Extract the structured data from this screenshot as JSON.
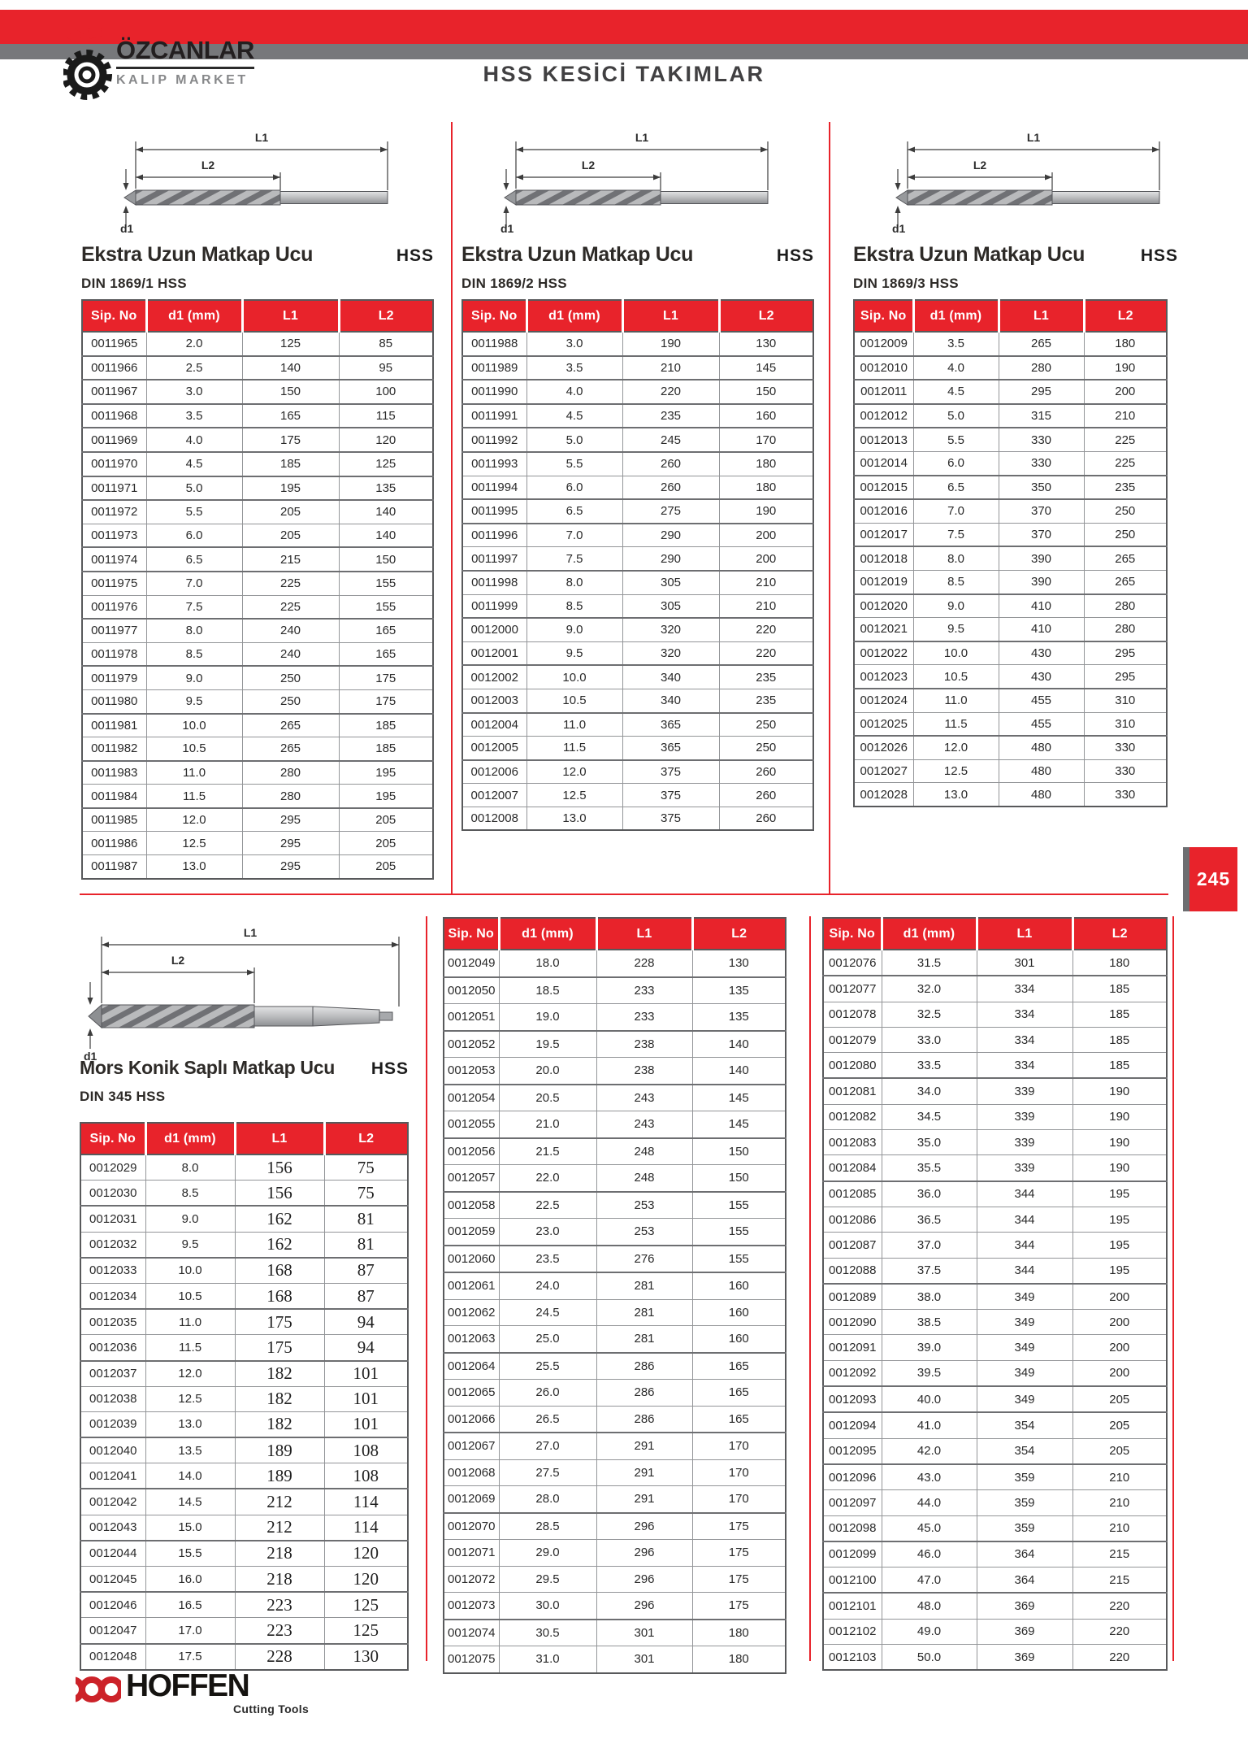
{
  "page": {
    "number": "245",
    "header_title": "HSS KESİCİ TAKIMLAR"
  },
  "brand": {
    "name": "ÖZCANLAR",
    "subtitle": "KALIP MARKET"
  },
  "footer": {
    "brand": "HOFFEN",
    "tagline": "Cutting Tools"
  },
  "colors": {
    "red": "#e8232b",
    "band_gray": "#77787b",
    "rule_gray": "#6d6e71"
  },
  "columns": [
    "Sip. No",
    "d1 (mm)",
    "L1",
    "L2"
  ],
  "diagram_labels": {
    "l1": "L1",
    "l2": "L2",
    "d1": "d1"
  },
  "sections": [
    {
      "title": "Ekstra Uzun Matkap Ucu",
      "badge": "HSS",
      "din": "DIN 1869/1 HSS",
      "rows": [
        [
          "0011965",
          "2.0",
          "125",
          "85"
        ],
        [
          "0011966",
          "2.5",
          "140",
          "95"
        ],
        [
          "0011967",
          "3.0",
          "150",
          "100"
        ],
        [
          "0011968",
          "3.5",
          "165",
          "115"
        ],
        [
          "0011969",
          "4.0",
          "175",
          "120"
        ],
        [
          "0011970",
          "4.5",
          "185",
          "125"
        ],
        [
          "0011971",
          "5.0",
          "195",
          "135"
        ],
        [
          "0011972",
          "5.5",
          "205",
          "140"
        ],
        [
          "0011973",
          "6.0",
          "205",
          "140"
        ],
        [
          "0011974",
          "6.5",
          "215",
          "150"
        ],
        [
          "0011975",
          "7.0",
          "225",
          "155"
        ],
        [
          "0011976",
          "7.5",
          "225",
          "155"
        ],
        [
          "0011977",
          "8.0",
          "240",
          "165"
        ],
        [
          "0011978",
          "8.5",
          "240",
          "165"
        ],
        [
          "0011979",
          "9.0",
          "250",
          "175"
        ],
        [
          "0011980",
          "9.5",
          "250",
          "175"
        ],
        [
          "0011981",
          "10.0",
          "265",
          "185"
        ],
        [
          "0011982",
          "10.5",
          "265",
          "185"
        ],
        [
          "0011983",
          "11.0",
          "280",
          "195"
        ],
        [
          "0011984",
          "11.5",
          "280",
          "195"
        ],
        [
          "0011985",
          "12.0",
          "295",
          "205"
        ],
        [
          "0011986",
          "12.5",
          "295",
          "205"
        ],
        [
          "0011987",
          "13.0",
          "295",
          "205"
        ]
      ]
    },
    {
      "title": "Ekstra Uzun Matkap Ucu",
      "badge": "HSS",
      "din": "DIN 1869/2 HSS",
      "rows": [
        [
          "0011988",
          "3.0",
          "190",
          "130"
        ],
        [
          "0011989",
          "3.5",
          "210",
          "145"
        ],
        [
          "0011990",
          "4.0",
          "220",
          "150"
        ],
        [
          "0011991",
          "4.5",
          "235",
          "160"
        ],
        [
          "0011992",
          "5.0",
          "245",
          "170"
        ],
        [
          "0011993",
          "5.5",
          "260",
          "180"
        ],
        [
          "0011994",
          "6.0",
          "260",
          "180"
        ],
        [
          "0011995",
          "6.5",
          "275",
          "190"
        ],
        [
          "0011996",
          "7.0",
          "290",
          "200"
        ],
        [
          "0011997",
          "7.5",
          "290",
          "200"
        ],
        [
          "0011998",
          "8.0",
          "305",
          "210"
        ],
        [
          "0011999",
          "8.5",
          "305",
          "210"
        ],
        [
          "0012000",
          "9.0",
          "320",
          "220"
        ],
        [
          "0012001",
          "9.5",
          "320",
          "220"
        ],
        [
          "0012002",
          "10.0",
          "340",
          "235"
        ],
        [
          "0012003",
          "10.5",
          "340",
          "235"
        ],
        [
          "0012004",
          "11.0",
          "365",
          "250"
        ],
        [
          "0012005",
          "11.5",
          "365",
          "250"
        ],
        [
          "0012006",
          "12.0",
          "375",
          "260"
        ],
        [
          "0012007",
          "12.5",
          "375",
          "260"
        ],
        [
          "0012008",
          "13.0",
          "375",
          "260"
        ]
      ]
    },
    {
      "title": "Ekstra Uzun Matkap Ucu",
      "badge": "HSS",
      "din": "DIN 1869/3 HSS",
      "rows": [
        [
          "0012009",
          "3.5",
          "265",
          "180"
        ],
        [
          "0012010",
          "4.0",
          "280",
          "190"
        ],
        [
          "0012011",
          "4.5",
          "295",
          "200"
        ],
        [
          "0012012",
          "5.0",
          "315",
          "210"
        ],
        [
          "0012013",
          "5.5",
          "330",
          "225"
        ],
        [
          "0012014",
          "6.0",
          "330",
          "225"
        ],
        [
          "0012015",
          "6.5",
          "350",
          "235"
        ],
        [
          "0012016",
          "7.0",
          "370",
          "250"
        ],
        [
          "0012017",
          "7.5",
          "370",
          "250"
        ],
        [
          "0012018",
          "8.0",
          "390",
          "265"
        ],
        [
          "0012019",
          "8.5",
          "390",
          "265"
        ],
        [
          "0012020",
          "9.0",
          "410",
          "280"
        ],
        [
          "0012021",
          "9.5",
          "410",
          "280"
        ],
        [
          "0012022",
          "10.0",
          "430",
          "295"
        ],
        [
          "0012023",
          "10.5",
          "430",
          "295"
        ],
        [
          "0012024",
          "11.0",
          "455",
          "310"
        ],
        [
          "0012025",
          "11.5",
          "455",
          "310"
        ],
        [
          "0012026",
          "12.0",
          "480",
          "330"
        ],
        [
          "0012027",
          "12.5",
          "480",
          "330"
        ],
        [
          "0012028",
          "13.0",
          "480",
          "330"
        ]
      ]
    },
    {
      "title": "Mors Konik Saplı Matkap Ucu",
      "badge": "HSS",
      "din": "DIN 345 HSS",
      "rows": [
        [
          "0012029",
          "8.0",
          "156",
          "75"
        ],
        [
          "0012030",
          "8.5",
          "156",
          "75"
        ],
        [
          "0012031",
          "9.0",
          "162",
          "81"
        ],
        [
          "0012032",
          "9.5",
          "162",
          "81"
        ],
        [
          "0012033",
          "10.0",
          "168",
          "87"
        ],
        [
          "0012034",
          "10.5",
          "168",
          "87"
        ],
        [
          "0012035",
          "11.0",
          "175",
          "94"
        ],
        [
          "0012036",
          "11.5",
          "175",
          "94"
        ],
        [
          "0012037",
          "12.0",
          "182",
          "101"
        ],
        [
          "0012038",
          "12.5",
          "182",
          "101"
        ],
        [
          "0012039",
          "13.0",
          "182",
          "101"
        ],
        [
          "0012040",
          "13.5",
          "189",
          "108"
        ],
        [
          "0012041",
          "14.0",
          "189",
          "108"
        ],
        [
          "0012042",
          "14.5",
          "212",
          "114"
        ],
        [
          "0012043",
          "15.0",
          "212",
          "114"
        ],
        [
          "0012044",
          "15.5",
          "218",
          "120"
        ],
        [
          "0012045",
          "16.0",
          "218",
          "120"
        ],
        [
          "0012046",
          "16.5",
          "223",
          "125"
        ],
        [
          "0012047",
          "17.0",
          "223",
          "125"
        ],
        [
          "0012048",
          "17.5",
          "228",
          "130"
        ]
      ]
    },
    {
      "rows": [
        [
          "0012049",
          "18.0",
          "228",
          "130"
        ],
        [
          "0012050",
          "18.5",
          "233",
          "135"
        ],
        [
          "0012051",
          "19.0",
          "233",
          "135"
        ],
        [
          "0012052",
          "19.5",
          "238",
          "140"
        ],
        [
          "0012053",
          "20.0",
          "238",
          "140"
        ],
        [
          "0012054",
          "20.5",
          "243",
          "145"
        ],
        [
          "0012055",
          "21.0",
          "243",
          "145"
        ],
        [
          "0012056",
          "21.5",
          "248",
          "150"
        ],
        [
          "0012057",
          "22.0",
          "248",
          "150"
        ],
        [
          "0012058",
          "22.5",
          "253",
          "155"
        ],
        [
          "0012059",
          "23.0",
          "253",
          "155"
        ],
        [
          "0012060",
          "23.5",
          "276",
          "155"
        ],
        [
          "0012061",
          "24.0",
          "281",
          "160"
        ],
        [
          "0012062",
          "24.5",
          "281",
          "160"
        ],
        [
          "0012063",
          "25.0",
          "281",
          "160"
        ],
        [
          "0012064",
          "25.5",
          "286",
          "165"
        ],
        [
          "0012065",
          "26.0",
          "286",
          "165"
        ],
        [
          "0012066",
          "26.5",
          "286",
          "165"
        ],
        [
          "0012067",
          "27.0",
          "291",
          "170"
        ],
        [
          "0012068",
          "27.5",
          "291",
          "170"
        ],
        [
          "0012069",
          "28.0",
          "291",
          "170"
        ],
        [
          "0012070",
          "28.5",
          "296",
          "175"
        ],
        [
          "0012071",
          "29.0",
          "296",
          "175"
        ],
        [
          "0012072",
          "29.5",
          "296",
          "175"
        ],
        [
          "0012073",
          "30.0",
          "296",
          "175"
        ],
        [
          "0012074",
          "30.5",
          "301",
          "180"
        ],
        [
          "0012075",
          "31.0",
          "301",
          "180"
        ]
      ]
    },
    {
      "rows": [
        [
          "0012076",
          "31.5",
          "301",
          "180"
        ],
        [
          "0012077",
          "32.0",
          "334",
          "185"
        ],
        [
          "0012078",
          "32.5",
          "334",
          "185"
        ],
        [
          "0012079",
          "33.0",
          "334",
          "185"
        ],
        [
          "0012080",
          "33.5",
          "334",
          "185"
        ],
        [
          "0012081",
          "34.0",
          "339",
          "190"
        ],
        [
          "0012082",
          "34.5",
          "339",
          "190"
        ],
        [
          "0012083",
          "35.0",
          "339",
          "190"
        ],
        [
          "0012084",
          "35.5",
          "339",
          "190"
        ],
        [
          "0012085",
          "36.0",
          "344",
          "195"
        ],
        [
          "0012086",
          "36.5",
          "344",
          "195"
        ],
        [
          "0012087",
          "37.0",
          "344",
          "195"
        ],
        [
          "0012088",
          "37.5",
          "344",
          "195"
        ],
        [
          "0012089",
          "38.0",
          "349",
          "200"
        ],
        [
          "0012090",
          "38.5",
          "349",
          "200"
        ],
        [
          "0012091",
          "39.0",
          "349",
          "200"
        ],
        [
          "0012092",
          "39.5",
          "349",
          "200"
        ],
        [
          "0012093",
          "40.0",
          "349",
          "205"
        ],
        [
          "0012094",
          "41.0",
          "354",
          "205"
        ],
        [
          "0012095",
          "42.0",
          "354",
          "205"
        ],
        [
          "0012096",
          "43.0",
          "359",
          "210"
        ],
        [
          "0012097",
          "44.0",
          "359",
          "210"
        ],
        [
          "0012098",
          "45.0",
          "359",
          "210"
        ],
        [
          "0012099",
          "46.0",
          "364",
          "215"
        ],
        [
          "0012100",
          "47.0",
          "364",
          "215"
        ],
        [
          "0012101",
          "48.0",
          "369",
          "220"
        ],
        [
          "0012102",
          "49.0",
          "369",
          "220"
        ],
        [
          "0012103",
          "50.0",
          "369",
          "220"
        ]
      ]
    }
  ]
}
